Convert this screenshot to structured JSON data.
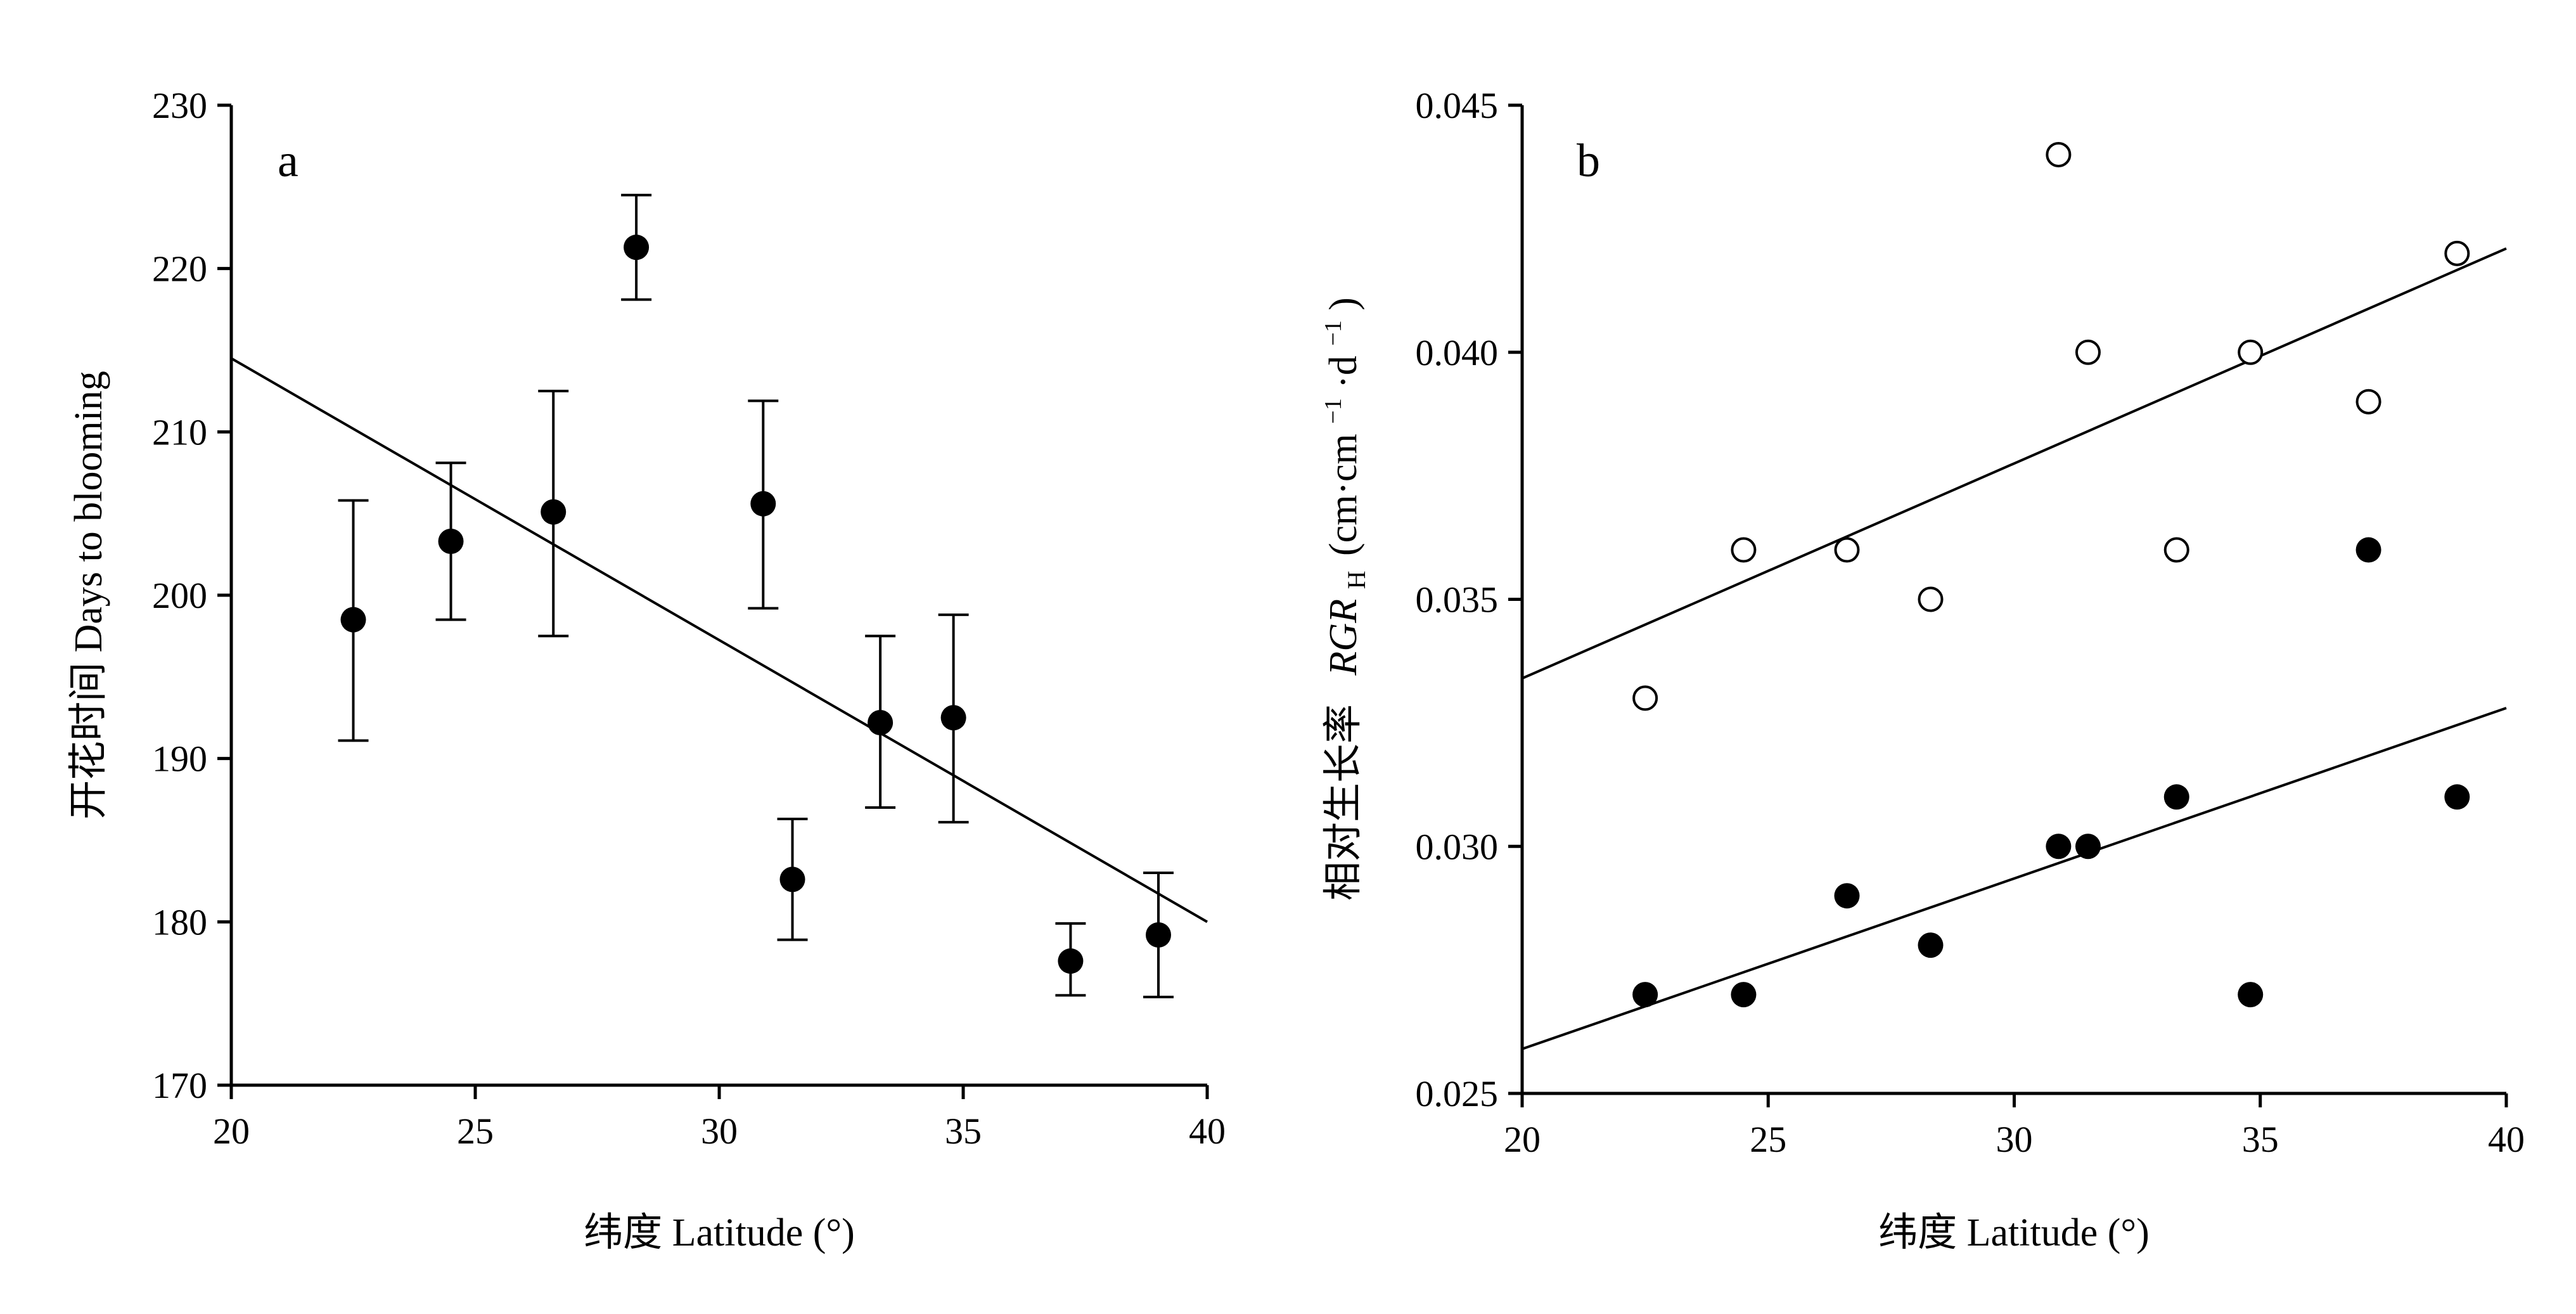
{
  "colors": {
    "ink": "#000000",
    "background": "#ffffff"
  },
  "chart_data": [
    {
      "type": "scatter",
      "panel_label": "a",
      "xlabel": "纬度 Latitude (°)",
      "ylabel": "开花时间 Days to blooming",
      "xlim": [
        20,
        40
      ],
      "ylim": [
        170,
        230
      ],
      "xticks": [
        "20",
        "25",
        "30",
        "35",
        "40"
      ],
      "yticks": [
        "170",
        "180",
        "190",
        "200",
        "210",
        "220",
        "230"
      ],
      "grid": false,
      "series": [
        {
          "marker": "filled-circle",
          "points": [
            {
              "x": 22.5,
              "y": 198.5,
              "err_low": 191.1,
              "err_high": 205.8
            },
            {
              "x": 24.5,
              "y": 203.3,
              "err_low": 198.5,
              "err_high": 208.1
            },
            {
              "x": 26.6,
              "y": 205.1,
              "err_low": 197.5,
              "err_high": 212.5
            },
            {
              "x": 28.3,
              "y": 221.3,
              "err_low": 218.1,
              "err_high": 224.5
            },
            {
              "x": 30.9,
              "y": 205.6,
              "err_low": 199.2,
              "err_high": 211.9
            },
            {
              "x": 31.5,
              "y": 182.6,
              "err_low": 178.9,
              "err_high": 186.3
            },
            {
              "x": 33.3,
              "y": 192.2,
              "err_low": 187.0,
              "err_high": 197.5
            },
            {
              "x": 34.8,
              "y": 192.5,
              "err_low": 186.1,
              "err_high": 198.8
            },
            {
              "x": 37.2,
              "y": 177.6,
              "err_low": 175.5,
              "err_high": 179.9
            },
            {
              "x": 39.0,
              "y": 179.2,
              "err_low": 175.4,
              "err_high": 183.0
            }
          ],
          "fit_line": [
            [
              20,
              214.5
            ],
            [
              40,
              180.0
            ]
          ]
        }
      ]
    },
    {
      "type": "scatter",
      "panel_label": "b",
      "xlabel": "纬度 Latitude (°)",
      "ylabel": "相对生长率 RGR_H (cm·cm⁻¹·d⁻¹)",
      "ylabel_parts": {
        "chinese": "相对生长率",
        "symbol": "RGR",
        "subscript": "H",
        "unit_open": "(cm·cm",
        "sup1": "−1",
        "unit_mid": "·d",
        "sup2": "−1",
        "unit_close": ")"
      },
      "xlim": [
        20,
        40
      ],
      "ylim": [
        0.025,
        0.045
      ],
      "xticks": [
        "20",
        "25",
        "30",
        "35",
        "40"
      ],
      "yticks": [
        "0.025",
        "0.030",
        "0.035",
        "0.040",
        "0.045"
      ],
      "grid": false,
      "series": [
        {
          "marker": "open-circle",
          "points": [
            {
              "x": 22.5,
              "y": 0.033
            },
            {
              "x": 24.5,
              "y": 0.036
            },
            {
              "x": 26.6,
              "y": 0.036
            },
            {
              "x": 28.3,
              "y": 0.035
            },
            {
              "x": 30.9,
              "y": 0.044
            },
            {
              "x": 31.5,
              "y": 0.04
            },
            {
              "x": 33.3,
              "y": 0.036
            },
            {
              "x": 34.8,
              "y": 0.04
            },
            {
              "x": 37.2,
              "y": 0.039
            },
            {
              "x": 39.0,
              "y": 0.042
            }
          ],
          "fit_line": [
            [
              20,
              0.0334
            ],
            [
              40,
              0.0421
            ]
          ]
        },
        {
          "marker": "filled-circle",
          "points": [
            {
              "x": 22.5,
              "y": 0.027
            },
            {
              "x": 24.5,
              "y": 0.027
            },
            {
              "x": 26.6,
              "y": 0.029
            },
            {
              "x": 28.3,
              "y": 0.028
            },
            {
              "x": 30.9,
              "y": 0.03
            },
            {
              "x": 31.5,
              "y": 0.03
            },
            {
              "x": 33.3,
              "y": 0.031
            },
            {
              "x": 34.8,
              "y": 0.027
            },
            {
              "x": 37.2,
              "y": 0.036
            },
            {
              "x": 39.0,
              "y": 0.031
            }
          ],
          "fit_line": [
            [
              20,
              0.0259
            ],
            [
              40,
              0.0328
            ]
          ]
        }
      ]
    }
  ]
}
